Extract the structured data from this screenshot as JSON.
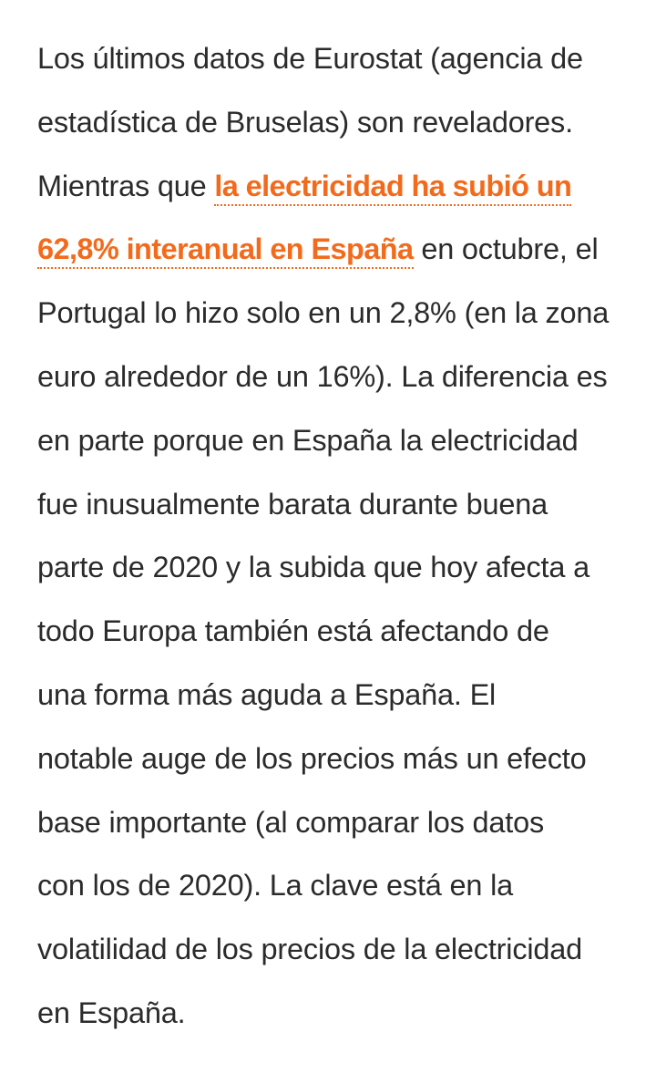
{
  "article": {
    "lines": [
      "Los últimos datos de Eurostat (agencia de",
      "estadística de Bruselas) son reveladores.",
      "Mientras que ",
      "la electricidad ha subió un",
      "62,8% interanual en España",
      " en octubre, el",
      "Portugal lo hizo solo en un 2,8% (en la zona",
      "euro alrededor de un 16%). La diferencia es",
      "en parte porque en España la electricidad",
      "fue inusualmente barata durante buena",
      "parte de 2020 y la subida que hoy afecta a",
      "todo Europa también está afectando de",
      "una forma más aguda a España. El",
      "notable auge de los precios más un efecto",
      "base importante (al comparar los datos",
      "con los de 2020). La clave está en la",
      "volatilidad de los precios de la electricidad",
      "en España."
    ]
  },
  "colors": {
    "text": "#2b2b2b",
    "link": "#f26b1d",
    "background": "#ffffff"
  }
}
